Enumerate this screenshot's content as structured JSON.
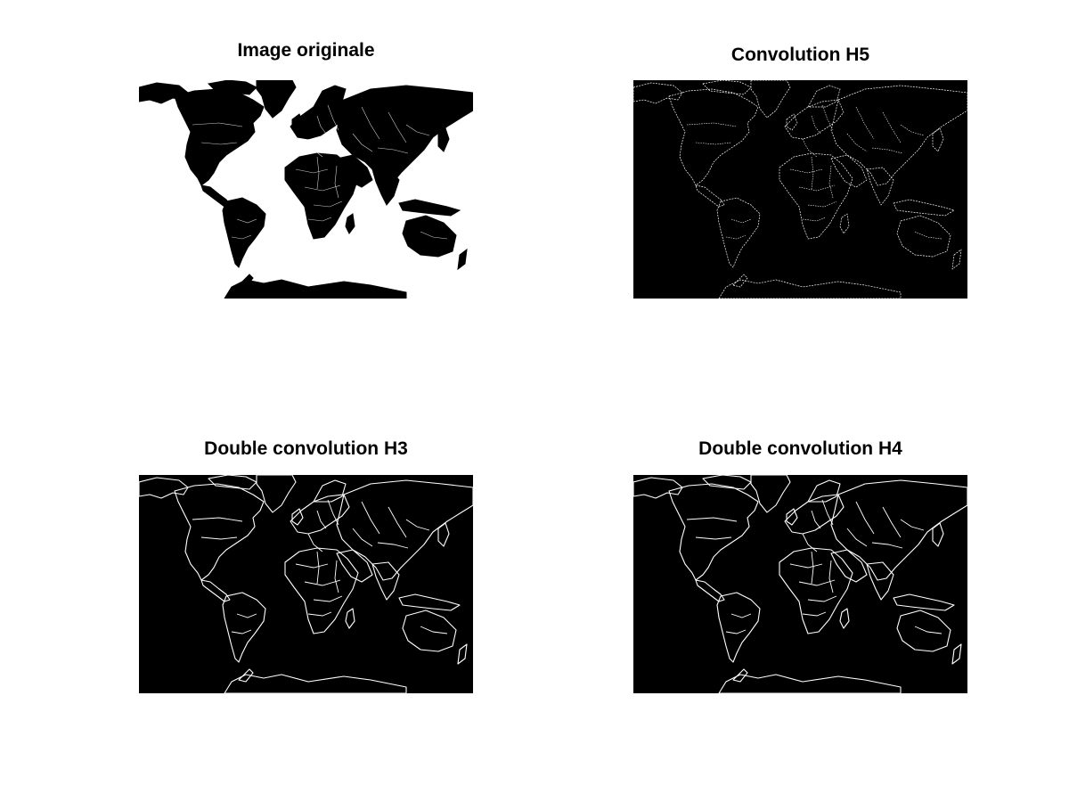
{
  "figure": {
    "panels": [
      {
        "id": "original",
        "title": "Image originale",
        "render": "filled",
        "background": "#ffffff",
        "foreground": "#000000"
      },
      {
        "id": "h5",
        "title": "Convolution H5",
        "render": "edges-dense",
        "background": "#000000",
        "foreground": "#ffffff"
      },
      {
        "id": "h3",
        "title": "Double convolution H3",
        "render": "edges",
        "background": "#000000",
        "foreground": "#ffffff"
      },
      {
        "id": "h4",
        "title": "Double convolution H4",
        "render": "edges",
        "background": "#000000",
        "foreground": "#ffffff"
      }
    ]
  }
}
